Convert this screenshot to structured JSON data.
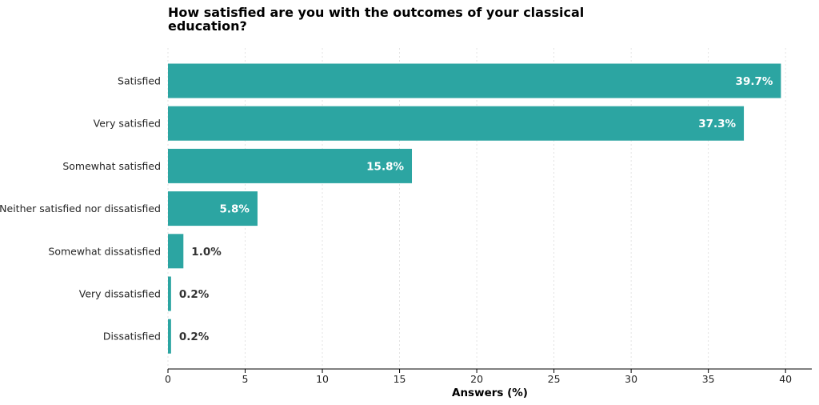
{
  "chart_data": {
    "type": "bar",
    "orientation": "horizontal",
    "title_lines": [
      "How satisfied are you with the outcomes of your classical",
      "education?"
    ],
    "xlabel": "Answers (%)",
    "ylabel": "",
    "xlim": [
      0,
      41.7
    ],
    "xticks": [
      0,
      5,
      10,
      15,
      20,
      25,
      30,
      35,
      40
    ],
    "grid": "vertical, light dashed",
    "categories": [
      "Satisfied",
      "Very satisfied",
      "Somewhat satisfied",
      "Neither satisfied nor dissatisfied",
      "Somewhat dissatisfied",
      "Very dissatisfied",
      "Dissatisfied"
    ],
    "values": [
      39.7,
      37.3,
      15.8,
      5.8,
      1.0,
      0.2,
      0.2
    ],
    "value_labels": [
      "39.7%",
      "37.3%",
      "15.8%",
      "5.8%",
      "1.0%",
      "0.2%",
      "0.2%"
    ],
    "bar_color": "#2ca5a2",
    "inside_label_color": "#ffffff",
    "outside_label_color": "#333333"
  }
}
